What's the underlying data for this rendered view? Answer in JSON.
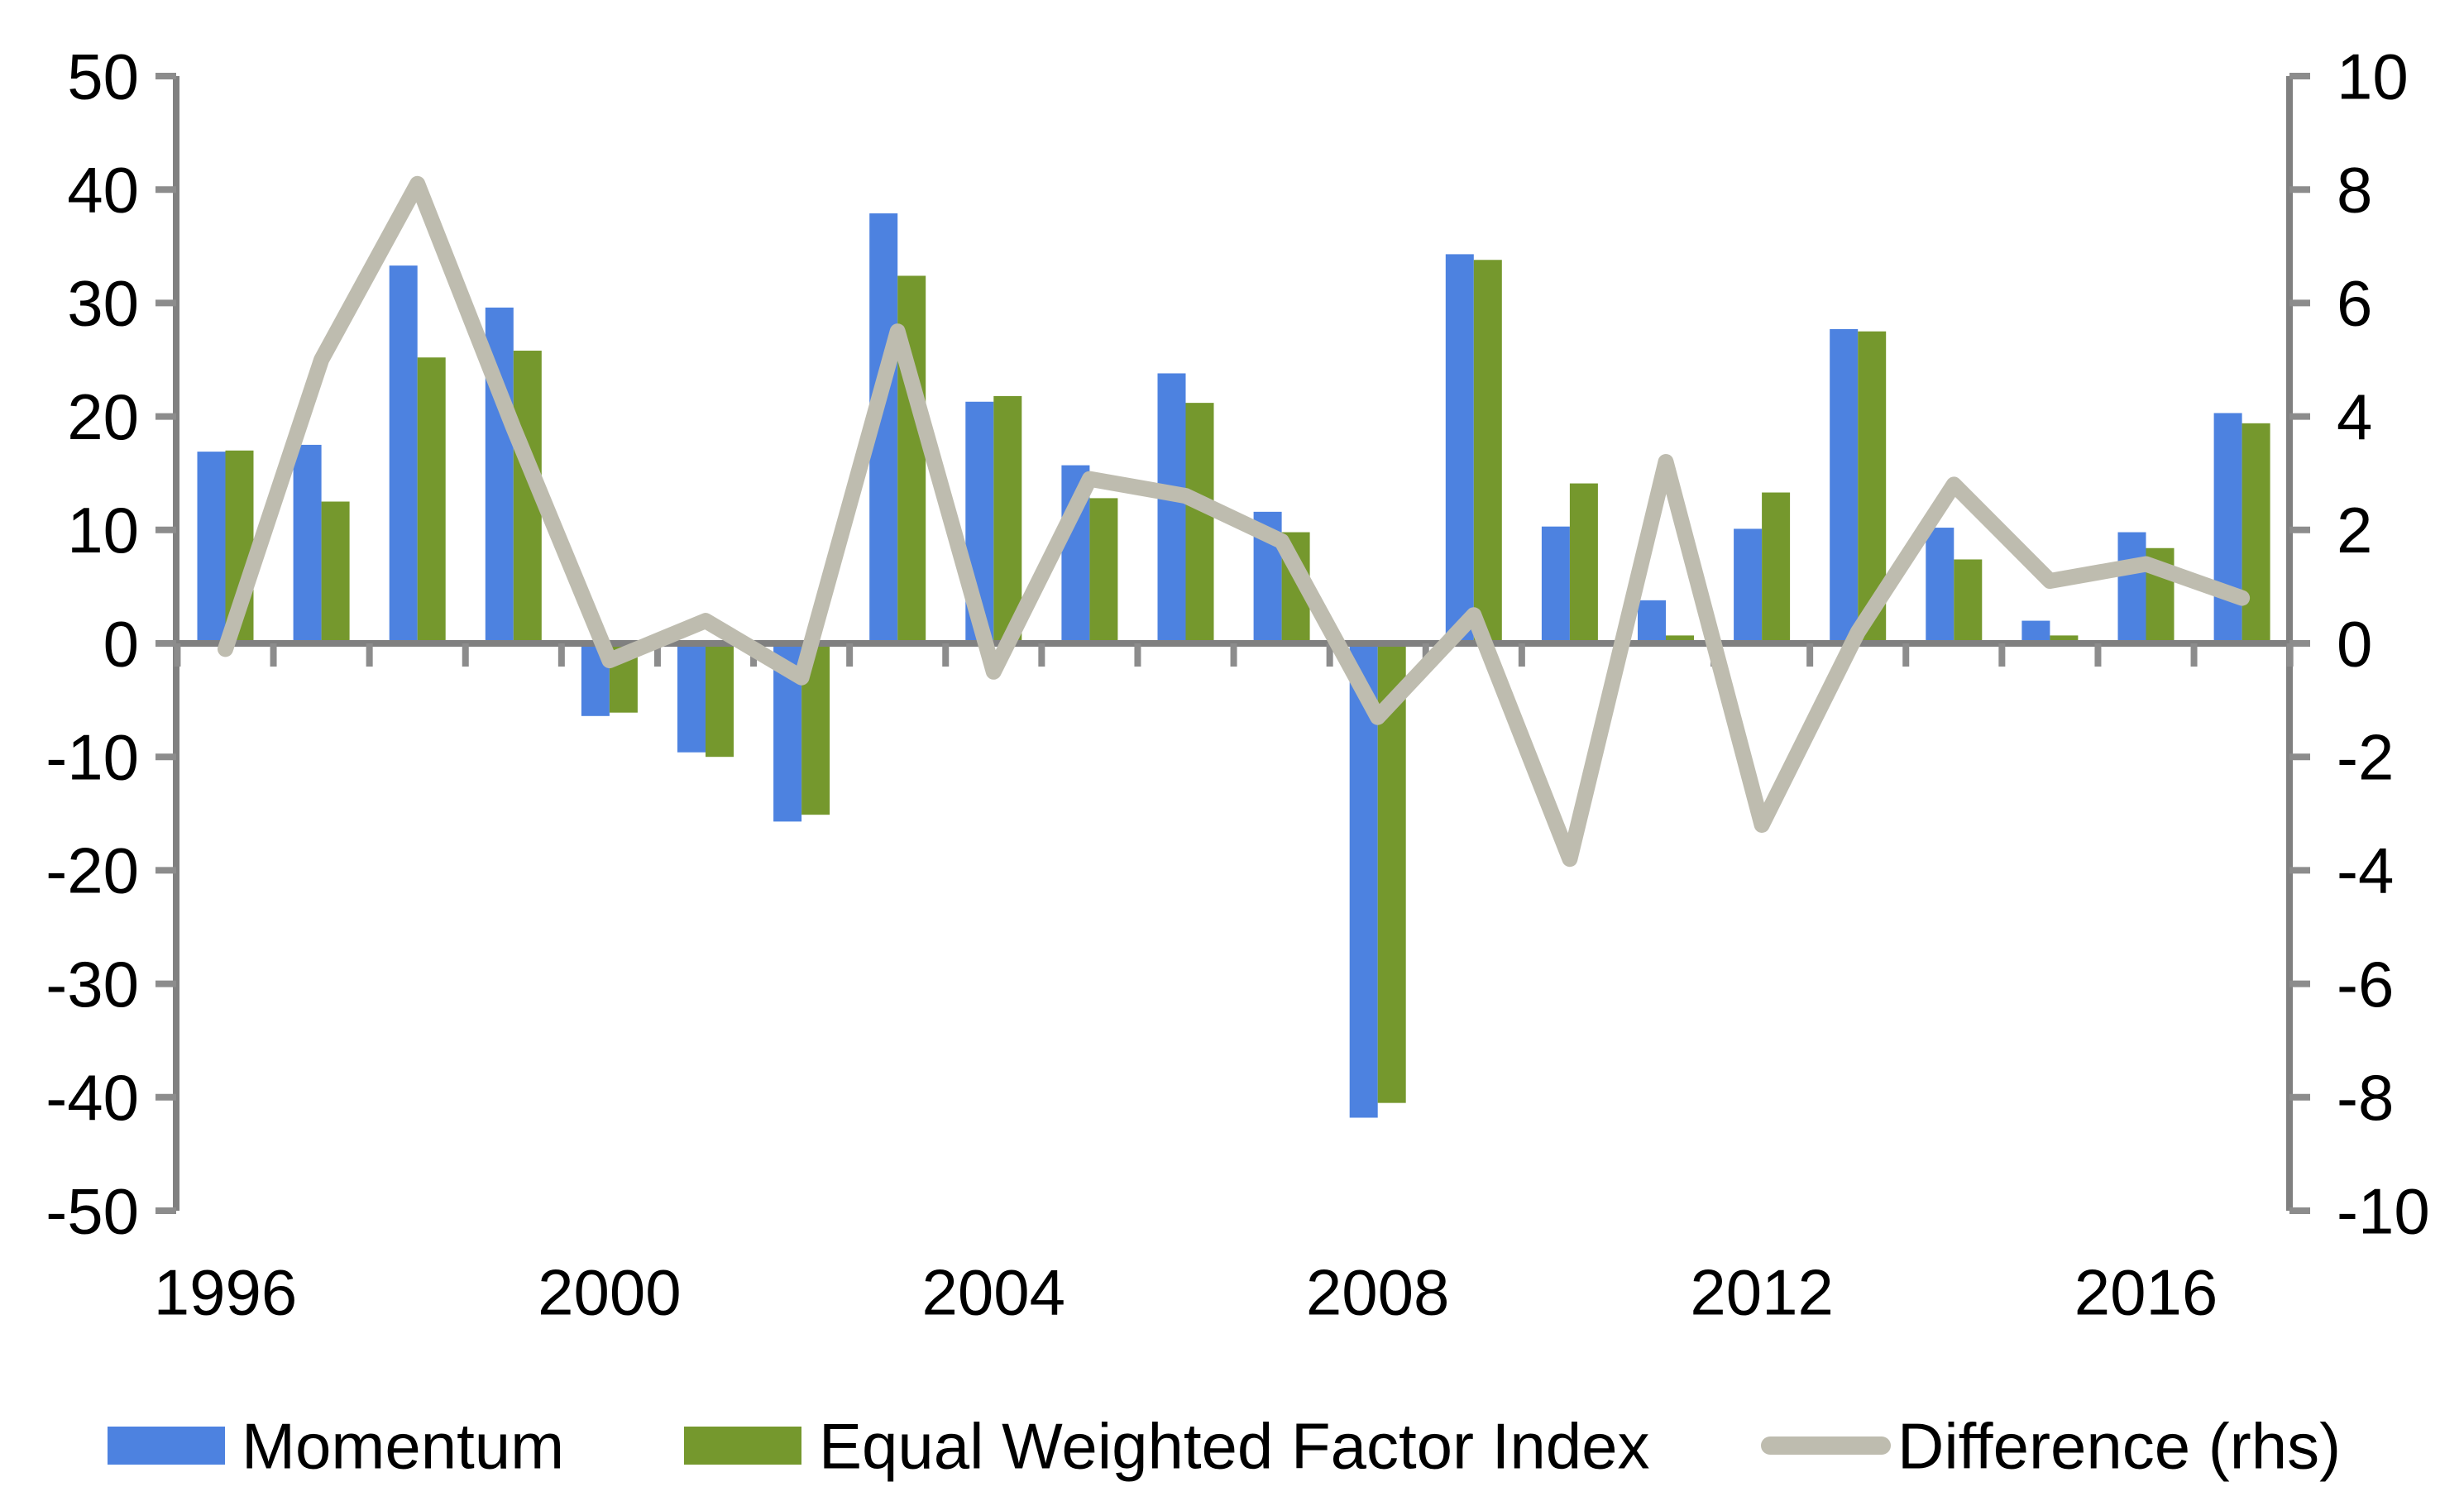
{
  "chart_data": {
    "type": "combo-bar-line",
    "title": "",
    "x_years": [
      1996,
      1997,
      1998,
      1999,
      2000,
      2001,
      2002,
      2003,
      2004,
      2005,
      2006,
      2007,
      2008,
      2009,
      2010,
      2011,
      2012,
      2013,
      2014,
      2015,
      2016,
      2017
    ],
    "x_tick_labels": [
      "1996",
      "2000",
      "2004",
      "2008",
      "2012",
      "2016"
    ],
    "x_tick_label_years": [
      1996,
      2000,
      2004,
      2008,
      2012,
      2016
    ],
    "series": [
      {
        "name": "Momentum",
        "type": "bar",
        "axis": "left",
        "color": "#4D82E0",
        "values": [
          16.9,
          17.5,
          33.3,
          29.6,
          -6.4,
          -9.6,
          -15.7,
          37.9,
          21.3,
          15.7,
          23.8,
          11.6,
          -41.8,
          34.3,
          10.3,
          3.8,
          10.1,
          27.7,
          10.2,
          2.0,
          9.8,
          20.3
        ]
      },
      {
        "name": "Equal Weighted Factor Index",
        "type": "bar",
        "axis": "left",
        "color": "#75982D",
        "values": [
          17.0,
          12.5,
          25.2,
          25.8,
          -6.1,
          -10.0,
          -15.1,
          32.4,
          21.8,
          12.8,
          21.2,
          9.8,
          -40.5,
          33.8,
          14.1,
          0.7,
          13.3,
          27.5,
          7.4,
          0.7,
          8.4,
          19.4
        ]
      },
      {
        "name": "Difference (rhs)",
        "type": "line",
        "axis": "right",
        "color": "#BEBCAF",
        "values": [
          -0.1,
          5.0,
          8.1,
          3.8,
          -0.3,
          0.4,
          -0.6,
          5.5,
          -0.5,
          2.9,
          2.6,
          1.8,
          -1.3,
          0.5,
          -3.8,
          3.2,
          -3.2,
          0.2,
          2.8,
          1.1,
          1.4,
          0.8
        ]
      }
    ],
    "left_axis": {
      "min": -50,
      "max": 50,
      "step": 10,
      "tick_labels": [
        "50",
        "40",
        "30",
        "20",
        "10",
        "0",
        "-10",
        "-20",
        "-30",
        "-40",
        "-50"
      ]
    },
    "right_axis": {
      "min": -10,
      "max": 10,
      "step": 2,
      "tick_labels": [
        "10",
        "8",
        "6",
        "4",
        "2",
        "0",
        "-2",
        "-4",
        "-6",
        "-8",
        "-10"
      ]
    },
    "grid": false,
    "legend_position": "bottom",
    "axis_color": "#808080"
  },
  "legend": {
    "items": [
      {
        "label": "Momentum",
        "swatch": "bar",
        "color": "#4D82E0"
      },
      {
        "label": "Equal Weighted Factor Index",
        "swatch": "bar",
        "color": "#75982D"
      },
      {
        "label": "Difference (rhs)",
        "swatch": "line",
        "color": "#BEBCAF"
      }
    ]
  }
}
